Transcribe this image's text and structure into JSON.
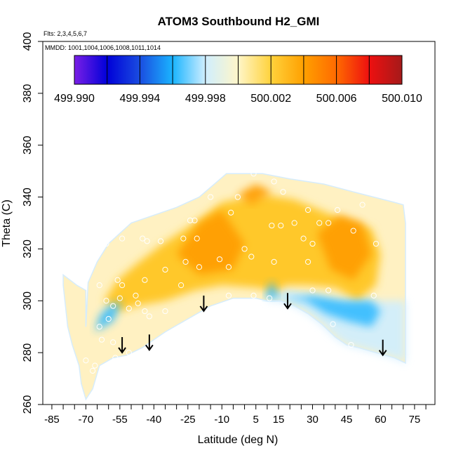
{
  "chart_data": {
    "type": "heatmap",
    "title": "ATOM3 Southbound H2_GMI",
    "subtitle_flights": "Flts: 2,3,4,5,6,7",
    "subtitle_dates": "MMDD: 1001,1004,1006,1008,1011,1014",
    "xlabel": "Latitude (deg N)",
    "ylabel": "Theta (C)",
    "xlim": [
      -89,
      84
    ],
    "ylim": [
      260,
      400
    ],
    "x_ticks": [
      "-85",
      "-70",
      "-55",
      "-40",
      "-25",
      "-10",
      "5",
      "15",
      "30",
      "45",
      "60",
      "75"
    ],
    "y_ticks": [
      "260",
      "280",
      "300",
      "320",
      "340",
      "360",
      "380",
      "400"
    ],
    "colorbar": {
      "min": 499.99,
      "max": 500.01,
      "labels": [
        "499.990",
        "499.994",
        "499.998",
        "500.002",
        "500.006",
        "500.010"
      ],
      "colors": [
        "#7a1fe6",
        "#0000d8",
        "#1a4de0",
        "#1ab4ff",
        "#cfeeff",
        "#fff6c8",
        "#ffd23c",
        "#ffa000",
        "#ff6a00",
        "#ee1010",
        "#a51a1a"
      ]
    },
    "region_upper": [
      [
        -70,
        290
      ],
      [
        -69,
        307
      ],
      [
        -65,
        315
      ],
      [
        -60,
        322
      ],
      [
        -50,
        330
      ],
      [
        -40,
        333
      ],
      [
        -30,
        336
      ],
      [
        -20,
        340
      ],
      [
        -12,
        346
      ],
      [
        -8,
        349
      ],
      [
        8,
        349
      ],
      [
        20,
        347
      ],
      [
        35,
        345
      ],
      [
        48,
        342
      ],
      [
        57,
        340
      ],
      [
        66,
        338
      ],
      [
        70,
        337
      ],
      [
        71,
        330
      ],
      [
        71,
        300
      ],
      [
        71,
        276
      ]
    ],
    "region_lower": [
      [
        71,
        276
      ],
      [
        66,
        278
      ],
      [
        58,
        280
      ],
      [
        50,
        282
      ],
      [
        45,
        283
      ],
      [
        40,
        286
      ],
      [
        34,
        291
      ],
      [
        28,
        295
      ],
      [
        22,
        298
      ],
      [
        16,
        300
      ],
      [
        12,
        300
      ],
      [
        10,
        300
      ],
      [
        5,
        301
      ],
      [
        -5,
        301
      ],
      [
        -15,
        298
      ],
      [
        -25,
        293
      ],
      [
        -35,
        288
      ],
      [
        -45,
        282
      ],
      [
        -52,
        279
      ],
      [
        -58,
        278
      ],
      [
        -64,
        275
      ],
      [
        -67,
        266
      ],
      [
        -70,
        262
      ],
      [
        -72,
        268
      ],
      [
        -73,
        275
      ],
      [
        -76,
        283
      ],
      [
        -78,
        290
      ],
      [
        -79,
        298
      ],
      [
        -80,
        306
      ],
      [
        -80,
        310
      ],
      [
        -74,
        306
      ],
      [
        -70,
        304
      ]
    ],
    "region_core": [
      [
        -62,
        300
      ],
      [
        -56,
        308
      ],
      [
        -48,
        314
      ],
      [
        -36,
        322
      ],
      [
        -22,
        330
      ],
      [
        -10,
        338
      ],
      [
        8,
        341
      ],
      [
        22,
        339
      ],
      [
        36,
        334
      ],
      [
        48,
        330
      ],
      [
        56,
        328
      ],
      [
        60,
        318
      ],
      [
        58,
        306
      ],
      [
        50,
        300
      ],
      [
        40,
        305
      ],
      [
        28,
        306
      ],
      [
        18,
        306
      ],
      [
        14,
        303
      ],
      [
        6,
        305
      ],
      [
        -10,
        306
      ],
      [
        -22,
        304
      ],
      [
        -35,
        300
      ],
      [
        -48,
        298
      ],
      [
        -55,
        296
      ]
    ],
    "region_dark_orange": [
      [
        [
          -30,
          318
        ],
        [
          -20,
          330
        ],
        [
          -10,
          335
        ],
        [
          0,
          322
        ],
        [
          -5,
          312
        ],
        [
          -20,
          310
        ]
      ],
      [
        [
          32,
          326
        ],
        [
          42,
          333
        ],
        [
          52,
          330
        ],
        [
          56,
          318
        ],
        [
          48,
          308
        ],
        [
          38,
          312
        ]
      ],
      [
        [
          -3,
          341
        ],
        [
          5,
          345
        ],
        [
          12,
          342
        ],
        [
          3,
          337
        ]
      ]
    ],
    "region_blue": [
      [
        [
          16,
          301
        ],
        [
          27,
          300
        ],
        [
          36,
          295
        ],
        [
          46,
          292
        ],
        [
          56,
          290
        ],
        [
          60,
          296
        ],
        [
          56,
          300
        ],
        [
          44,
          300
        ],
        [
          30,
          302
        ]
      ],
      [
        [
          9,
          301
        ],
        [
          12,
          308
        ],
        [
          15,
          301
        ]
      ],
      [
        [
          -66,
          288
        ],
        [
          -58,
          292
        ],
        [
          -54,
          300
        ],
        [
          -60,
          298
        ],
        [
          -64,
          294
        ]
      ]
    ],
    "observations": [
      [
        -11,
        349
      ],
      [
        4,
        349
      ],
      [
        13,
        346
      ],
      [
        17,
        342
      ],
      [
        -3,
        340
      ],
      [
        -15,
        340
      ],
      [
        -6,
        334
      ],
      [
        28,
        335
      ],
      [
        41,
        335
      ],
      [
        52,
        337
      ],
      [
        -24,
        331
      ],
      [
        -22,
        331
      ],
      [
        22,
        330
      ],
      [
        12,
        329
      ],
      [
        16,
        329
      ],
      [
        33,
        330
      ],
      [
        37,
        330
      ],
      [
        48,
        327
      ],
      [
        -21,
        324
      ],
      [
        -27,
        324
      ],
      [
        0,
        320
      ],
      [
        26,
        324
      ],
      [
        30,
        322
      ],
      [
        58,
        322
      ],
      [
        -54,
        324
      ],
      [
        -43,
        323
      ],
      [
        -37,
        323
      ],
      [
        -45,
        324
      ],
      [
        -61,
        322
      ],
      [
        -26,
        315
      ],
      [
        -20,
        313
      ],
      [
        -11,
        316
      ],
      [
        -7,
        313
      ],
      [
        3,
        317
      ],
      [
        13,
        315
      ],
      [
        28,
        315
      ],
      [
        -35,
        312
      ],
      [
        -44,
        308
      ],
      [
        -54,
        306
      ],
      [
        -56,
        308
      ],
      [
        -48,
        302
      ],
      [
        -55,
        301
      ],
      [
        -58,
        298
      ],
      [
        -51,
        297
      ],
      [
        -47,
        299
      ],
      [
        -44,
        296
      ],
      [
        -42,
        294
      ],
      [
        -35,
        296
      ],
      [
        -64,
        306
      ],
      [
        -61,
        300
      ],
      [
        -28,
        306
      ],
      [
        -7,
        302
      ],
      [
        4,
        302
      ],
      [
        11,
        301
      ],
      [
        30,
        304
      ],
      [
        37,
        304
      ],
      [
        39,
        291
      ],
      [
        47,
        283
      ],
      [
        57,
        302
      ],
      [
        -60,
        293
      ],
      [
        -64,
        290
      ],
      [
        -63,
        285
      ],
      [
        -58,
        284
      ],
      [
        -57,
        278
      ],
      [
        -51,
        280
      ],
      [
        -66,
        275
      ],
      [
        -70,
        277
      ],
      [
        -67,
        273
      ]
    ],
    "arrows": [
      [
        -54,
        286
      ],
      [
        -42,
        287
      ],
      [
        -18,
        302
      ],
      [
        19,
        303
      ],
      [
        61,
        285
      ]
    ]
  }
}
